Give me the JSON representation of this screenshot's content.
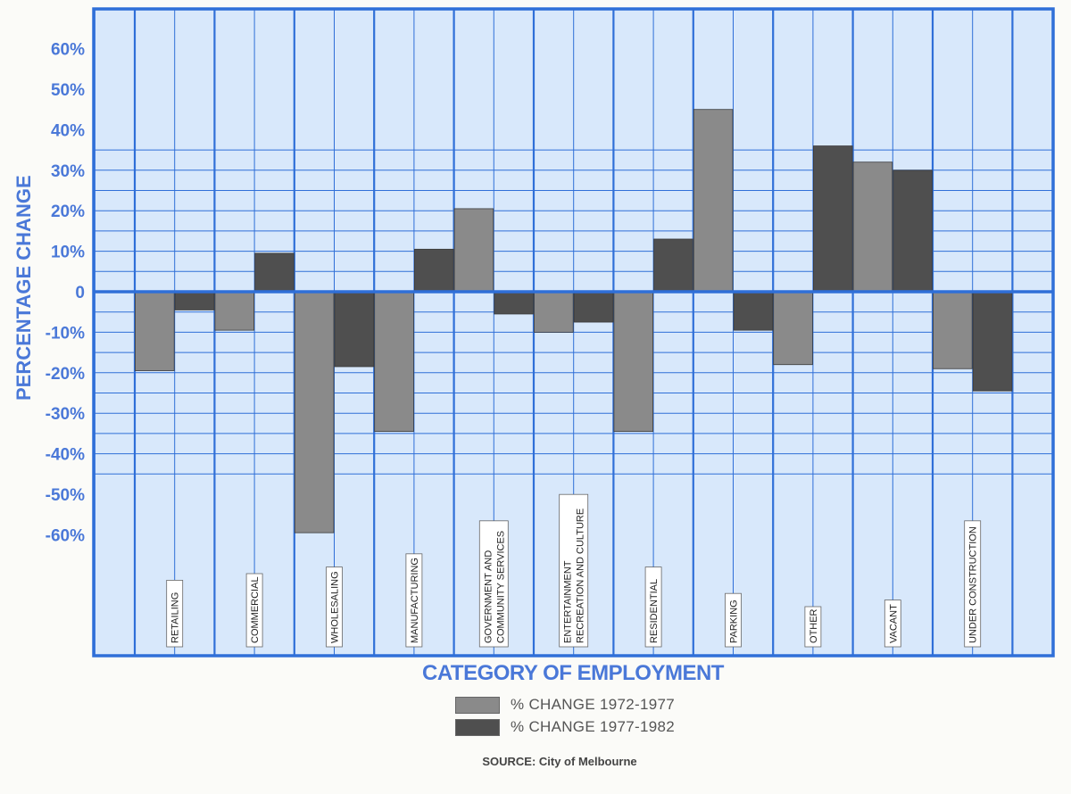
{
  "chart_data": {
    "type": "bar",
    "title": "",
    "ylabel": "PERCENTAGE CHANGE",
    "xlabel": "CATEGORY OF EMPLOYMENT",
    "ylim": [
      -70,
      70
    ],
    "yticks": [
      60,
      50,
      40,
      30,
      20,
      10,
      0,
      -10,
      -20,
      -30,
      -40,
      -50,
      -60
    ],
    "ytick_labels": [
      "60%",
      "50%",
      "40%",
      "30%",
      "20%",
      "10%",
      "0",
      "-10%",
      "-20%",
      "-30%",
      "-40%",
      "-50%",
      "-60%"
    ],
    "categories": [
      "RETAILING",
      "COMMERCIAL",
      "WHOLESALING",
      "MANUFACTURING",
      "GOVERNMENT AND COMMUNITY SERVICES",
      "ENTERTAINMENT RECREATION AND CULTURE",
      "RESIDENTIAL",
      "PARKING",
      "OTHER",
      "VACANT",
      "UNDER CONSTRUCTION"
    ],
    "category_label_lines": [
      [
        "RETAILING"
      ],
      [
        "COMMERCIAL"
      ],
      [
        "WHOLESALING"
      ],
      [
        "MANUFACTURING"
      ],
      [
        "GOVERNMENT AND",
        "COMMUNITY SERVICES"
      ],
      [
        "ENTERTAINMENT",
        "RECREATION AND CULTURE"
      ],
      [
        "RESIDENTIAL"
      ],
      [
        "PARKING"
      ],
      [
        "OTHER"
      ],
      [
        "VACANT"
      ],
      [
        "UNDER CONSTRUCTION"
      ]
    ],
    "series": [
      {
        "name": "% CHANGE 1972-1977",
        "color": "#8a8a8a",
        "values": [
          -19.5,
          -9.5,
          -59.5,
          -34.5,
          20.5,
          -10,
          -34.5,
          45,
          -18,
          32,
          -19
        ]
      },
      {
        "name": "% CHANGE 1977-1982",
        "color": "#4f4f4f",
        "values": [
          -4.5,
          9.5,
          -18.5,
          10.5,
          -5.5,
          -7.5,
          13,
          -9.5,
          36,
          30,
          -24.5
        ]
      }
    ],
    "grid": true,
    "legend_position": "bottom-center"
  },
  "source": "SOURCE: City of Melbourne",
  "colors": {
    "grid_line": "#2f6fd8",
    "background": "#d8e8fb",
    "axis_text": "#4a78d8"
  }
}
